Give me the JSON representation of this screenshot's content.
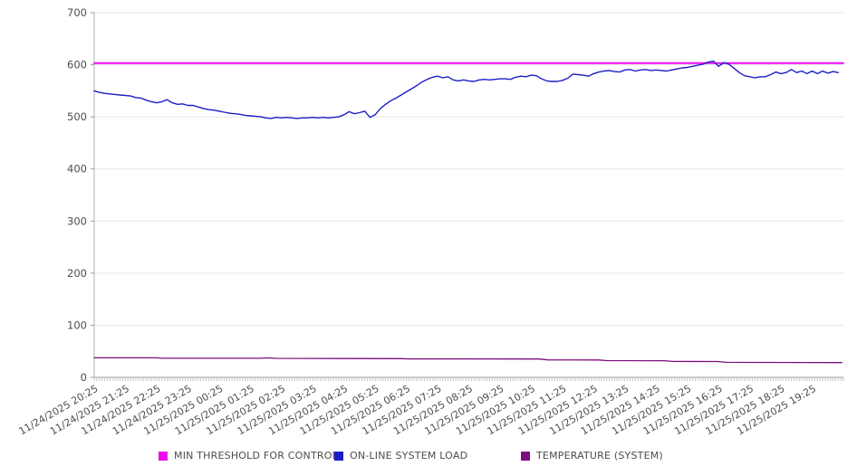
{
  "chart_data": {
    "type": "line",
    "title": "",
    "xlabel": "",
    "ylabel": "",
    "ylim": [
      0,
      700
    ],
    "y_ticks": [
      0,
      100,
      200,
      300,
      400,
      500,
      600,
      700
    ],
    "grid": "horizontal",
    "legend_position": "bottom",
    "x_span_minutes": 1440,
    "x_label_interval_minutes": 60,
    "x_minor_tick_minutes": 5,
    "x_tick_labels": [
      "11/24/2025 20:25",
      "11/24/2025 21:25",
      "11/24/2025 22:25",
      "11/24/2025 23:25",
      "11/25/2025 00:25",
      "11/25/2025 01:25",
      "11/25/2025 02:25",
      "11/25/2025 03:25",
      "11/25/2025 04:25",
      "11/25/2025 05:25",
      "11/25/2025 06:25",
      "11/25/2025 07:25",
      "11/25/2025 08:25",
      "11/25/2025 09:25",
      "11/25/2025 10:25",
      "11/25/2025 11:25",
      "11/25/2025 12:25",
      "11/25/2025 13:25",
      "11/25/2025 14:25",
      "11/25/2025 15:25",
      "11/25/2025 16:25",
      "11/25/2025 17:25",
      "11/25/2025 18:25",
      "11/25/2025 19:25"
    ],
    "series": [
      {
        "name": "MIN THRESHOLD FOR CONTROL",
        "type": "hline",
        "color": "#ee0aee",
        "stroke_width": 2,
        "value": 603
      },
      {
        "name": "ON-LINE SYSTEM LOAD",
        "type": "line",
        "color": "#1d1dc8",
        "stroke_width": 1.4,
        "step_minutes": 10,
        "values": [
          550,
          547,
          545,
          544,
          543,
          542,
          541,
          540,
          537,
          536,
          532,
          529,
          527,
          529,
          533,
          527,
          524,
          525,
          522,
          522,
          519,
          516,
          514,
          513,
          511,
          509,
          507,
          506,
          505,
          503,
          502,
          501,
          500,
          498,
          497,
          499,
          498,
          499,
          498,
          497,
          498,
          498,
          499,
          498,
          499,
          498,
          499,
          500,
          504,
          510,
          506,
          508,
          511,
          499,
          504,
          516,
          524,
          531,
          536,
          542,
          548,
          554,
          560,
          567,
          572,
          576,
          578,
          575,
          577,
          571,
          569,
          571,
          569,
          568,
          571,
          572,
          571,
          572,
          573,
          573,
          572,
          576,
          578,
          577,
          580,
          579,
          573,
          569,
          568,
          568,
          570,
          574,
          582,
          581,
          580,
          578,
          583,
          586,
          588,
          589,
          587,
          586,
          590,
          591,
          588,
          590,
          591,
          589,
          590,
          589,
          588,
          590,
          592,
          594,
          595,
          597,
          599,
          601,
          605,
          607,
          597,
          604,
          601,
          593,
          585,
          579,
          577,
          575,
          577,
          577,
          581,
          586,
          583,
          585,
          591,
          585,
          588,
          583,
          588,
          583,
          588,
          584,
          587,
          585
        ]
      },
      {
        "name": "TEMPERATURE (SYSTEM)",
        "type": "line",
        "color": "#7d0d7d",
        "stroke_width": 1.3,
        "points": [
          [
            0,
            37.5
          ],
          [
            120,
            37.5
          ],
          [
            130,
            36.6
          ],
          [
            320,
            36.6
          ],
          [
            332,
            37.4
          ],
          [
            350,
            36.4
          ],
          [
            590,
            36.0
          ],
          [
            605,
            35.4
          ],
          [
            855,
            35.2
          ],
          [
            872,
            33.6
          ],
          [
            970,
            33.4
          ],
          [
            985,
            32.2
          ],
          [
            1095,
            32.0
          ],
          [
            1112,
            30.6
          ],
          [
            1198,
            30.4
          ],
          [
            1215,
            28.8
          ],
          [
            1437,
            28.3
          ]
        ]
      }
    ]
  }
}
